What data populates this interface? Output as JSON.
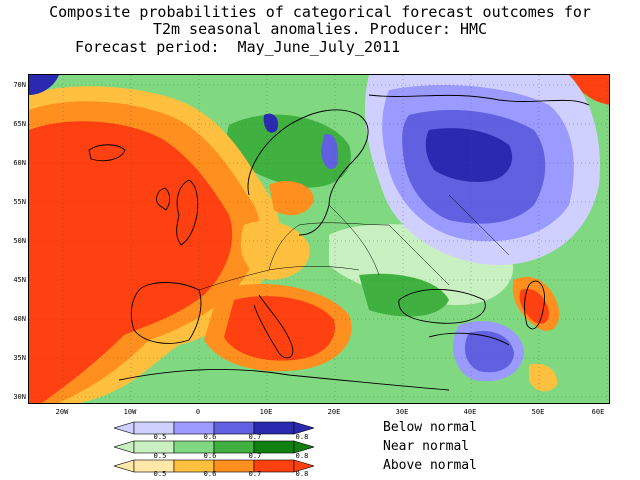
{
  "title": {
    "line1": "Composite probabilities of categorical forecast outcomes for",
    "line2": "T2m seasonal anomalies. Producer: HMC",
    "line3": "Forecast period:  May_June_July_2011"
  },
  "map": {
    "lat_labels": [
      "70N",
      "65N",
      "60N",
      "55N",
      "50N",
      "45N",
      "40N",
      "35N",
      "30N"
    ],
    "lon_labels": [
      "20W",
      "10W",
      "0",
      "10E",
      "20E",
      "30E",
      "40E",
      "50E",
      "60E"
    ],
    "extent": {
      "lon_min": -25,
      "lon_max": 60,
      "lat_min": 30,
      "lat_max": 72
    }
  },
  "legend": {
    "categories": [
      {
        "name": "Below normal",
        "colors": [
          "#d0d0ff",
          "#9a9aff",
          "#6060e0",
          "#2a2ab0"
        ]
      },
      {
        "name": "Near normal",
        "colors": [
          "#c8f0c0",
          "#80d880",
          "#40b040",
          "#108010"
        ]
      },
      {
        "name": "Above normal",
        "colors": [
          "#ffe8a8",
          "#ffc040",
          "#ff9020",
          "#ff4010"
        ]
      }
    ],
    "tick_values": [
      "0.5",
      "0.6",
      "0.7",
      "0.8"
    ]
  }
}
